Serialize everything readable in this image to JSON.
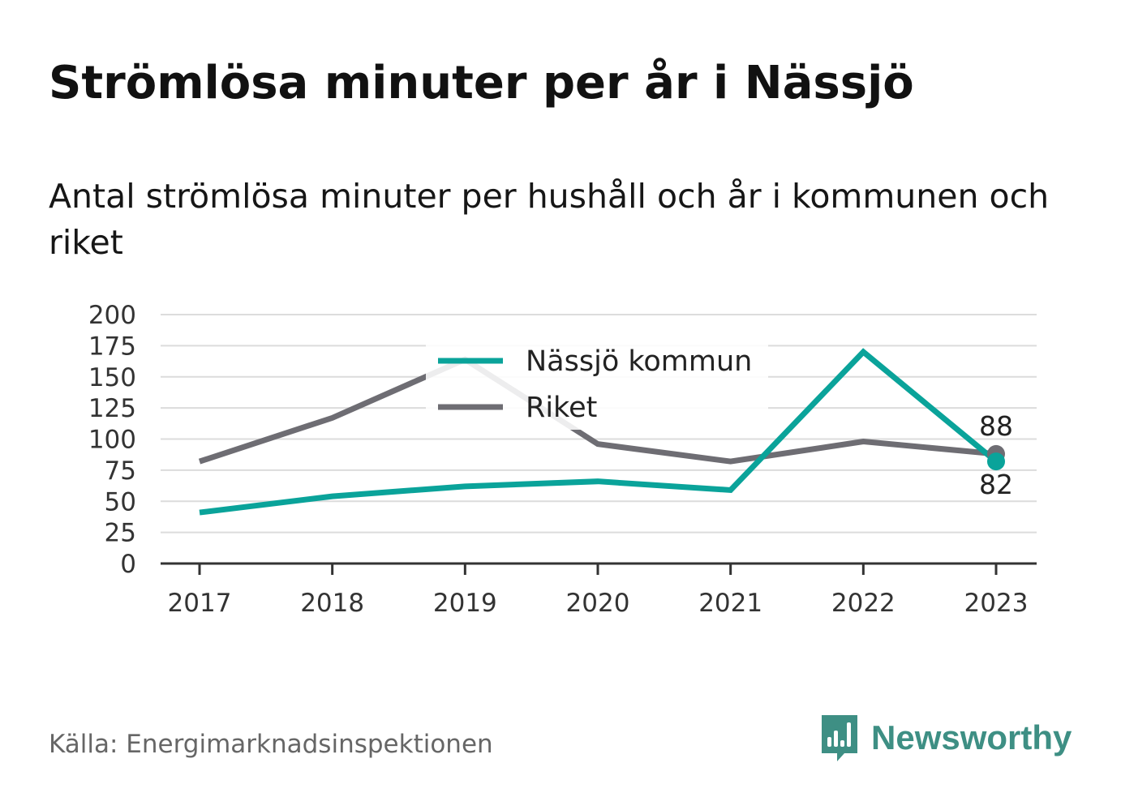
{
  "title": "Strömlösa minuter per år i Nässjö",
  "subtitle": "Antal strömlösa minuter per hushåll och år i kommunen och riket",
  "source": "Källa: Energimarknadsinspektionen",
  "brand": "Newsworthy",
  "colors": {
    "nassjo": "#0aa39a",
    "riket": "#6e6d73",
    "grid": "#dcdcdc",
    "axis": "#333333",
    "brand": "#3e8f84"
  },
  "chart_data": {
    "type": "line",
    "x": [
      "2017",
      "2018",
      "2019",
      "2020",
      "2021",
      "2022",
      "2023"
    ],
    "ylim": [
      0,
      200
    ],
    "yticks": [
      0,
      25,
      50,
      75,
      100,
      125,
      150,
      175,
      200
    ],
    "grid": true,
    "legend_position": "top-center",
    "series": [
      {
        "name": "Nässjö kommun",
        "color": "#0aa39a",
        "values": [
          41,
          54,
          62,
          66,
          59,
          170,
          82
        ]
      },
      {
        "name": "Riket",
        "color": "#6e6d73",
        "values": [
          82,
          117,
          164,
          96,
          82,
          98,
          88
        ]
      }
    ],
    "end_labels": {
      "riket": "88",
      "nassjo": "82"
    }
  }
}
